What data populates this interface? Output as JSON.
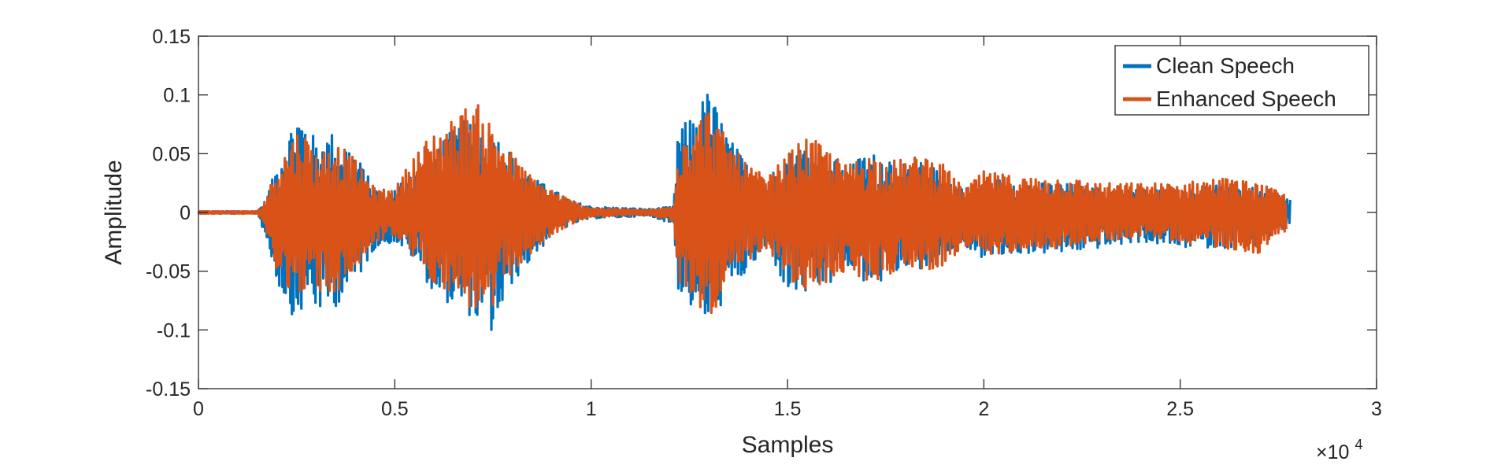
{
  "chart_data": {
    "type": "line",
    "xlabel": "Samples",
    "ylabel": "Amplitude",
    "x_exponent_label": "×10",
    "x_exponent_power": "4",
    "xlim": [
      0,
      30000
    ],
    "ylim": [
      -0.15,
      0.15
    ],
    "x_ticks": [
      0,
      5000,
      10000,
      15000,
      20000,
      25000,
      30000
    ],
    "x_tick_labels": [
      "0",
      "0.5",
      "1",
      "1.5",
      "2",
      "2.5",
      "3"
    ],
    "y_ticks": [
      -0.15,
      -0.1,
      -0.05,
      0,
      0.05,
      0.1,
      0.15
    ],
    "y_tick_labels": [
      "-0.15",
      "-0.1",
      "-0.05",
      "0",
      "0.05",
      "0.1",
      "0.15"
    ],
    "legend_position": "top-right",
    "grid": false,
    "series": [
      {
        "name": "Clean Speech",
        "color": "#0072BD",
        "envelope": [
          [
            0,
            0.001,
            -0.001
          ],
          [
            1500,
            0.001,
            -0.001
          ],
          [
            1700,
            0.01,
            -0.02
          ],
          [
            2000,
            0.04,
            -0.06
          ],
          [
            2500,
            0.087,
            -0.095
          ],
          [
            2800,
            0.075,
            -0.07
          ],
          [
            3000,
            0.06,
            -0.085
          ],
          [
            3500,
            0.07,
            -0.08
          ],
          [
            4000,
            0.05,
            -0.06
          ],
          [
            4500,
            0.02,
            -0.03
          ],
          [
            5000,
            0.02,
            -0.025
          ],
          [
            5500,
            0.04,
            -0.04
          ],
          [
            6000,
            0.06,
            -0.07
          ],
          [
            6500,
            0.07,
            -0.08
          ],
          [
            7000,
            0.085,
            -0.09
          ],
          [
            7500,
            0.07,
            -0.105
          ],
          [
            8000,
            0.05,
            -0.06
          ],
          [
            8500,
            0.03,
            -0.04
          ],
          [
            9000,
            0.02,
            -0.02
          ],
          [
            9500,
            0.01,
            -0.01
          ],
          [
            10000,
            0.005,
            -0.005
          ],
          [
            11500,
            0.003,
            -0.003
          ],
          [
            12100,
            0.005,
            -0.01
          ],
          [
            12200,
            0.07,
            -0.065
          ],
          [
            12500,
            0.08,
            -0.08
          ],
          [
            13000,
            0.105,
            -0.095
          ],
          [
            13500,
            0.065,
            -0.07
          ],
          [
            14000,
            0.04,
            -0.05
          ],
          [
            14500,
            0.03,
            -0.03
          ],
          [
            15000,
            0.05,
            -0.07
          ],
          [
            15500,
            0.06,
            -0.07
          ],
          [
            16000,
            0.05,
            -0.065
          ],
          [
            16500,
            0.04,
            -0.05
          ],
          [
            17000,
            0.05,
            -0.06
          ],
          [
            17500,
            0.05,
            -0.06
          ],
          [
            18000,
            0.04,
            -0.045
          ],
          [
            18500,
            0.045,
            -0.05
          ],
          [
            19000,
            0.03,
            -0.04
          ],
          [
            19500,
            0.02,
            -0.03
          ],
          [
            20000,
            0.03,
            -0.04
          ],
          [
            21000,
            0.025,
            -0.035
          ],
          [
            22000,
            0.025,
            -0.035
          ],
          [
            23000,
            0.02,
            -0.03
          ],
          [
            24000,
            0.02,
            -0.025
          ],
          [
            25000,
            0.02,
            -0.03
          ],
          [
            26000,
            0.025,
            -0.03
          ],
          [
            27000,
            0.02,
            -0.03
          ],
          [
            27800,
            0.012,
            -0.01
          ]
        ]
      },
      {
        "name": "Enhanced Speech",
        "color": "#D95319",
        "envelope": [
          [
            0,
            0.001,
            -0.001
          ],
          [
            1500,
            0.001,
            -0.001
          ],
          [
            1700,
            0.01,
            -0.015
          ],
          [
            2000,
            0.04,
            -0.05
          ],
          [
            2500,
            0.07,
            -0.075
          ],
          [
            2800,
            0.065,
            -0.06
          ],
          [
            3000,
            0.05,
            -0.07
          ],
          [
            3500,
            0.06,
            -0.07
          ],
          [
            4000,
            0.045,
            -0.05
          ],
          [
            4500,
            0.02,
            -0.025
          ],
          [
            5000,
            0.02,
            -0.02
          ],
          [
            5500,
            0.05,
            -0.04
          ],
          [
            6000,
            0.07,
            -0.06
          ],
          [
            6500,
            0.08,
            -0.07
          ],
          [
            7000,
            0.097,
            -0.085
          ],
          [
            7500,
            0.075,
            -0.085
          ],
          [
            8000,
            0.05,
            -0.05
          ],
          [
            8500,
            0.03,
            -0.035
          ],
          [
            9000,
            0.02,
            -0.02
          ],
          [
            9500,
            0.01,
            -0.01
          ],
          [
            10000,
            0.004,
            -0.004
          ],
          [
            11500,
            0.002,
            -0.002
          ],
          [
            12100,
            0.005,
            -0.008
          ],
          [
            12200,
            0.065,
            -0.06
          ],
          [
            12500,
            0.075,
            -0.07
          ],
          [
            13000,
            0.09,
            -0.09
          ],
          [
            13500,
            0.06,
            -0.065
          ],
          [
            14000,
            0.04,
            -0.045
          ],
          [
            14500,
            0.03,
            -0.03
          ],
          [
            15000,
            0.05,
            -0.06
          ],
          [
            15500,
            0.065,
            -0.07
          ],
          [
            16000,
            0.055,
            -0.06
          ],
          [
            16500,
            0.04,
            -0.05
          ],
          [
            17000,
            0.05,
            -0.06
          ],
          [
            17500,
            0.045,
            -0.055
          ],
          [
            18000,
            0.045,
            -0.045
          ],
          [
            18500,
            0.05,
            -0.05
          ],
          [
            19000,
            0.04,
            -0.045
          ],
          [
            19500,
            0.02,
            -0.03
          ],
          [
            20000,
            0.035,
            -0.04
          ],
          [
            21000,
            0.03,
            -0.03
          ],
          [
            22000,
            0.03,
            -0.03
          ],
          [
            23000,
            0.025,
            -0.025
          ],
          [
            24000,
            0.025,
            -0.02
          ],
          [
            25000,
            0.025,
            -0.025
          ],
          [
            26000,
            0.03,
            -0.03
          ],
          [
            27000,
            0.025,
            -0.035
          ],
          [
            27700,
            0.015,
            -0.015
          ]
        ]
      }
    ]
  }
}
